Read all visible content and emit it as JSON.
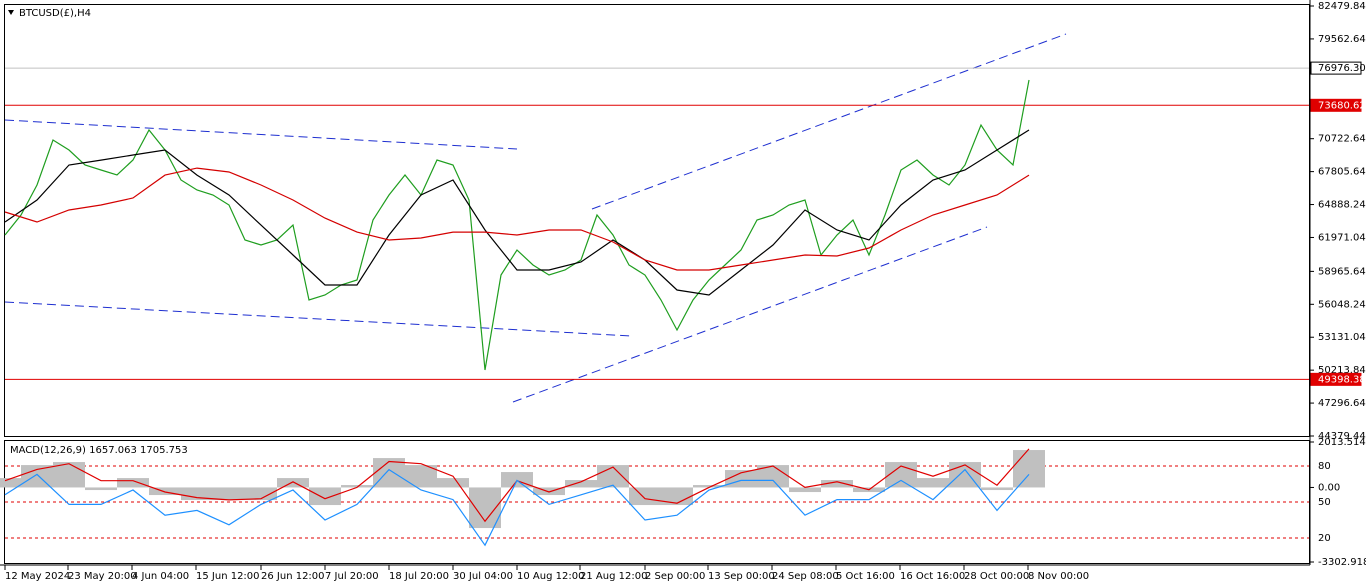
{
  "chart_data": [
    {
      "type": "line",
      "title": "BTCUSD(£),H4",
      "x": [
        0,
        16,
        32,
        48,
        64,
        80,
        96,
        112,
        128,
        144,
        160,
        176,
        192,
        208,
        224,
        240,
        256,
        272,
        288,
        304,
        320,
        336,
        352,
        368,
        384,
        400,
        416,
        432,
        448,
        464,
        480,
        496,
        512,
        528,
        544,
        560,
        576,
        592,
        608,
        624,
        640,
        656,
        672,
        688,
        704,
        720,
        736,
        752,
        768,
        784,
        800,
        816,
        832,
        848,
        864,
        880,
        896,
        912,
        928,
        944,
        960,
        976,
        992,
        1008,
        1024
      ],
      "series": [
        {
          "color": "#1f9e1f",
          "values": [
            62188,
            63960,
            66618,
            70605,
            69719,
            68390,
            67947,
            67504,
            68833,
            71491,
            69719,
            67061,
            66175,
            65732,
            64846,
            61745,
            61302,
            61745,
            63074,
            56429,
            56872,
            57758,
            58201,
            63517,
            65732,
            67504,
            65732,
            68833,
            68390,
            65289,
            50227,
            58644,
            60859,
            59530,
            58644,
            59087,
            59973,
            63960,
            62188,
            59530,
            58644,
            56429,
            53771,
            56429,
            58201,
            59530,
            60859,
            63517,
            63960,
            64846,
            65289,
            60416,
            62188,
            63517,
            60416,
            63960,
            67947,
            68833,
            67504,
            66618,
            68390,
            71934,
            69719,
            68390,
            75921
          ]
        },
        {
          "color": "#000000",
          "x": [
            0,
            32,
            64,
            96,
            128,
            160,
            192,
            224,
            256,
            288,
            320,
            352,
            384,
            416,
            448,
            480,
            512,
            544,
            576,
            608,
            640,
            672,
            704,
            736,
            768,
            800,
            832,
            864,
            896,
            928,
            960,
            992,
            1024
          ],
          "values": [
            63340,
            65290,
            68390,
            68830,
            69280,
            69720,
            67500,
            65730,
            63070,
            60420,
            57760,
            57760,
            62190,
            65730,
            67060,
            62630,
            59090,
            59090,
            59800,
            61750,
            59970,
            57320,
            56870,
            59090,
            61300,
            64400,
            62630,
            61750,
            64850,
            67060,
            67950,
            69720,
            71490
          ]
        },
        {
          "color": "#d40000",
          "x": [
            0,
            32,
            64,
            96,
            128,
            160,
            192,
            224,
            256,
            288,
            320,
            352,
            384,
            416,
            448,
            480,
            512,
            544,
            576,
            608,
            640,
            672,
            704,
            736,
            768,
            800,
            832,
            864,
            896,
            928,
            960,
            992,
            1024
          ],
          "values": [
            64230,
            63340,
            64400,
            64850,
            65470,
            67500,
            68120,
            67770,
            66620,
            65290,
            63690,
            62450,
            61750,
            61920,
            62450,
            62450,
            62190,
            62630,
            62630,
            61570,
            59970,
            59090,
            59090,
            59530,
            59970,
            60420,
            60330,
            61040,
            62630,
            63960,
            64850,
            65730,
            67500
          ]
        }
      ],
      "xlim": [
        0,
        1300
      ],
      "ylim": [
        44379.44,
        82479.84
      ],
      "yticks": [
        82479.84,
        79562.64,
        70722.64,
        67805.64,
        64888.24,
        61971.04,
        58965.64,
        56048.24,
        53131.04,
        50213.84,
        47296.64,
        44379.44
      ],
      "levels": [
        {
          "value": 76976.3,
          "label": "76976.30",
          "color": "#c0c0c0"
        },
        {
          "value": 73680.62,
          "color": "#e00000"
        },
        {
          "value": 49398.38,
          "color": "#e00000"
        }
      ]
    },
    {
      "type": "macd",
      "title": "MACD(12,26,9) 1657.063 1705.753",
      "x": [
        0,
        32,
        64,
        96,
        128,
        160,
        192,
        224,
        256,
        288,
        320,
        352,
        384,
        416,
        448,
        480,
        512,
        544,
        576,
        608,
        640,
        672,
        704,
        736,
        768,
        800,
        832,
        864,
        896,
        928,
        960,
        992,
        1024
      ],
      "series": [
        {
          "type": "bar",
          "color": "#c0c0c0",
          "values": [
            416,
            992,
            1125,
            -115,
            416,
            -337,
            -558,
            -558,
            -558,
            416,
            -780,
            106,
            1302,
            992,
            416,
            -1799,
            682,
            -337,
            328,
            992,
            -780,
            -780,
            106,
            771,
            992,
            -204,
            328,
            -204,
            1125,
            416,
            1125,
            -115,
            1657
          ]
        },
        {
          "type": "line",
          "color": "#e00000",
          "values": [
            300,
            800,
            1050,
            300,
            300,
            -200,
            -450,
            -550,
            -500,
            250,
            -500,
            0,
            1150,
            1050,
            500,
            -1500,
            300,
            -200,
            250,
            900,
            -500,
            -700,
            0,
            650,
            950,
            0,
            250,
            -100,
            950,
            500,
            1000,
            100,
            1706
          ]
        },
        {
          "type": "line",
          "color": "#1e90ff",
          "axis": "y2",
          "values": [
            56,
            73,
            48,
            48,
            60,
            39,
            43,
            31,
            48,
            60,
            35,
            48,
            77,
            60,
            52,
            14,
            68,
            48,
            56,
            64,
            35,
            39,
            60,
            68,
            68,
            39,
            52,
            52,
            68,
            52,
            77,
            43,
            73
          ]
        }
      ],
      "xlim": [
        0,
        1300
      ],
      "ylim": [
        -3302.918,
        2013.514
      ],
      "yticks": [
        2013.514,
        {
          "value": 0,
          "label": "0.00"
        },
        -3302.918
      ],
      "y2lim": [
        0,
        100
      ],
      "y2ticks": [
        80,
        50,
        20
      ],
      "xticks": [
        {
          "value": 0,
          "label": "12 May 2024"
        },
        {
          "value": 63,
          "label": "23 May 20:00"
        },
        {
          "value": 127,
          "label": "4 Jun 04:00"
        },
        {
          "value": 191,
          "label": "15 Jun 12:00"
        },
        {
          "value": 256,
          "label": "26 Jun 12:00"
        },
        {
          "value": 320,
          "label": "7 Jul 20:00"
        },
        {
          "value": 384,
          "label": "18 Jul 20:00"
        },
        {
          "value": 448,
          "label": "30 Jul 04:00"
        },
        {
          "value": 512,
          "label": "10 Aug 12:00"
        },
        {
          "value": 575,
          "label": "21 Aug 12:00"
        },
        {
          "value": 640,
          "label": "2 Sep 00:00"
        },
        {
          "value": 703,
          "label": "13 Sep 00:00"
        },
        {
          "value": 767,
          "label": "24 Sep 08:00"
        },
        {
          "value": 831,
          "label": "5 Oct 16:00"
        },
        {
          "value": 895,
          "label": "16 Oct 16:00"
        },
        {
          "value": 959,
          "label": "28 Oct 00:00"
        },
        {
          "value": 1023,
          "label": "8 Nov 00:00"
        }
      ]
    }
  ]
}
